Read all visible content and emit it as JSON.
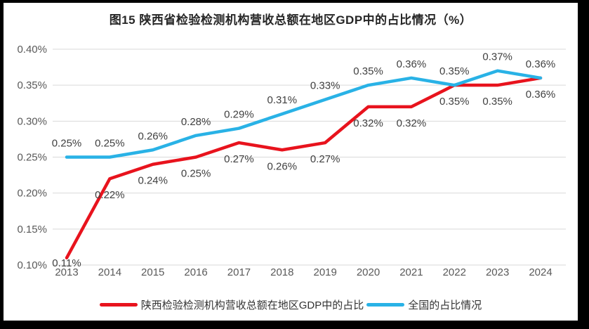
{
  "frame": {
    "border_color": "#000000",
    "panel_background": "#ffffff"
  },
  "title": "图15 陕西省检验检测机构营收总额在地区GDP中的占比情况（%）",
  "chart_data": {
    "type": "line",
    "title": "图15 陕西省检验检测机构营收总额在地区GDP中的占比情况（%）",
    "categories": [
      "2013",
      "2014",
      "2015",
      "2016",
      "2017",
      "2018",
      "2019",
      "2020",
      "2021",
      "2022",
      "2023",
      "2024"
    ],
    "series": [
      {
        "name": "陕西检验检测机构营收总额在地区GDP中的占比",
        "color": "#e8131d",
        "values": [
          0.11,
          0.22,
          0.24,
          0.25,
          0.27,
          0.26,
          0.27,
          0.32,
          0.32,
          0.35,
          0.35,
          0.36
        ],
        "labels": [
          "0.11%",
          "0.22%",
          "0.24%",
          "0.25%",
          "0.27%",
          "0.26%",
          "0.27%",
          "0.32%",
          "0.32%",
          "0.35%",
          "0.35%",
          "0.36%"
        ],
        "label_position": "below"
      },
      {
        "name": "全国的占比情况",
        "color": "#29b2e6",
        "values": [
          0.25,
          0.25,
          0.26,
          0.28,
          0.29,
          0.31,
          0.33,
          0.35,
          0.36,
          0.35,
          0.37,
          0.36
        ],
        "labels": [
          "0.25%",
          "0.25%",
          "0.26%",
          "0.28%",
          "0.29%",
          "0.31%",
          "0.33%",
          "0.35%",
          "0.36%",
          "0.35%",
          "0.37%",
          "0.36%"
        ],
        "label_position": "above"
      }
    ],
    "xlabel": "",
    "ylabel": "",
    "ylim": [
      0.1,
      0.4
    ],
    "ytick_step": 0.05,
    "ytick_labels": [
      "0.10%",
      "0.15%",
      "0.20%",
      "0.25%",
      "0.30%",
      "0.35%",
      "0.40%"
    ],
    "grid": true,
    "legend_position": "bottom",
    "styles": {
      "grid_color": "#d9d9d9",
      "axis_label_color": "#595959",
      "data_label_color": "#404040"
    }
  }
}
